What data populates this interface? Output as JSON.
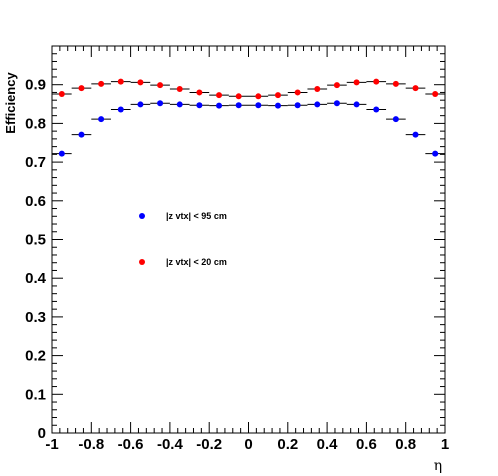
{
  "chart_data": {
    "type": "scatter",
    "title": "",
    "xlabel": "η",
    "ylabel": "Efficiency",
    "xlim": [
      -1,
      1
    ],
    "ylim": [
      0,
      1
    ],
    "x_ticks": [
      "-1",
      "-0.8",
      "-0.6",
      "-0.4",
      "-0.2",
      "0",
      "0.2",
      "0.4",
      "0.6",
      "0.8",
      "1"
    ],
    "y_ticks": [
      "0",
      "0.1",
      "0.2",
      "0.3",
      "0.4",
      "0.5",
      "0.6",
      "0.7",
      "0.8",
      "0.9"
    ],
    "grid": false,
    "legend_position": "center-left",
    "x": [
      -0.95,
      -0.85,
      -0.75,
      -0.65,
      -0.55,
      -0.45,
      -0.35,
      -0.25,
      -0.15,
      -0.05,
      0.05,
      0.15,
      0.25,
      0.35,
      0.45,
      0.55,
      0.65,
      0.75,
      0.85,
      0.95
    ],
    "x_error": 0.05,
    "series": [
      {
        "name": "|z vtx| < 95 cm",
        "color": "#0000ff",
        "values": [
          0.722,
          0.771,
          0.811,
          0.836,
          0.849,
          0.852,
          0.849,
          0.847,
          0.846,
          0.847,
          0.847,
          0.846,
          0.847,
          0.849,
          0.852,
          0.849,
          0.836,
          0.811,
          0.771,
          0.722
        ]
      },
      {
        "name": "|z vtx| < 20 cm",
        "color": "#ff0000",
        "values": [
          0.876,
          0.891,
          0.902,
          0.908,
          0.906,
          0.899,
          0.889,
          0.88,
          0.873,
          0.87,
          0.87,
          0.873,
          0.88,
          0.889,
          0.899,
          0.906,
          0.908,
          0.902,
          0.891,
          0.876
        ]
      }
    ]
  }
}
